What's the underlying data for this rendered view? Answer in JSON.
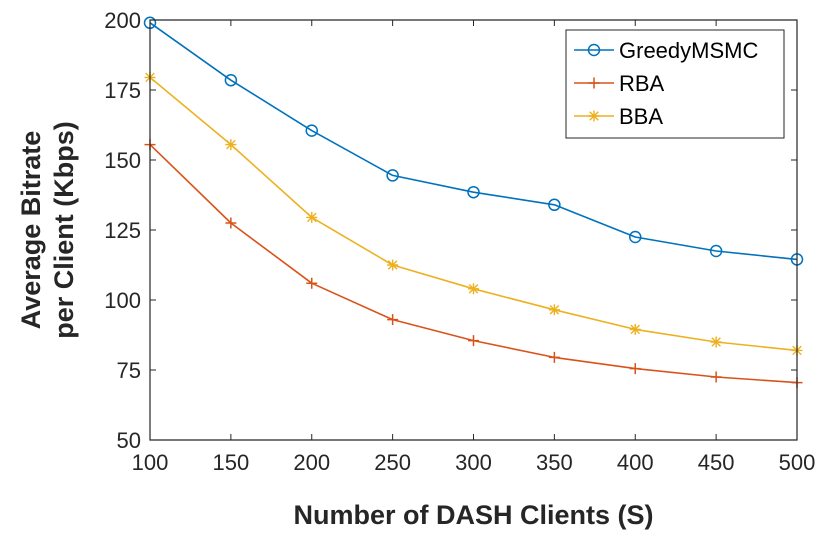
{
  "chart_data": {
    "type": "line",
    "title": "",
    "xlabel": "Number of DASH Clients (S)",
    "ylabel_lines": [
      "Average Bitrate",
      "per Client (Kbps)"
    ],
    "x": [
      100,
      150,
      200,
      250,
      300,
      350,
      400,
      450,
      500
    ],
    "xlim": [
      100,
      500
    ],
    "ylim": [
      50,
      200
    ],
    "xticks": [
      100,
      150,
      200,
      250,
      300,
      350,
      400,
      450,
      500
    ],
    "yticks": [
      50,
      75,
      100,
      125,
      150,
      175,
      200
    ],
    "grid": false,
    "legend_position": "top-right",
    "series": [
      {
        "name": "GreedyMSMC",
        "marker": "circle",
        "color": "#0072BD",
        "values": [
          199,
          178.5,
          160.5,
          144.5,
          138.5,
          134,
          122.5,
          117.5,
          114.5
        ]
      },
      {
        "name": "RBA",
        "marker": "plus",
        "color": "#D95319",
        "values": [
          155.5,
          127.5,
          106,
          93,
          85.5,
          79.5,
          75.5,
          72.5,
          70.5
        ]
      },
      {
        "name": "BBA",
        "marker": "asterisk",
        "color": "#EDB120",
        "values": [
          179.5,
          155.5,
          129.5,
          112.5,
          104,
          96.5,
          89.5,
          85,
          82
        ]
      }
    ]
  }
}
